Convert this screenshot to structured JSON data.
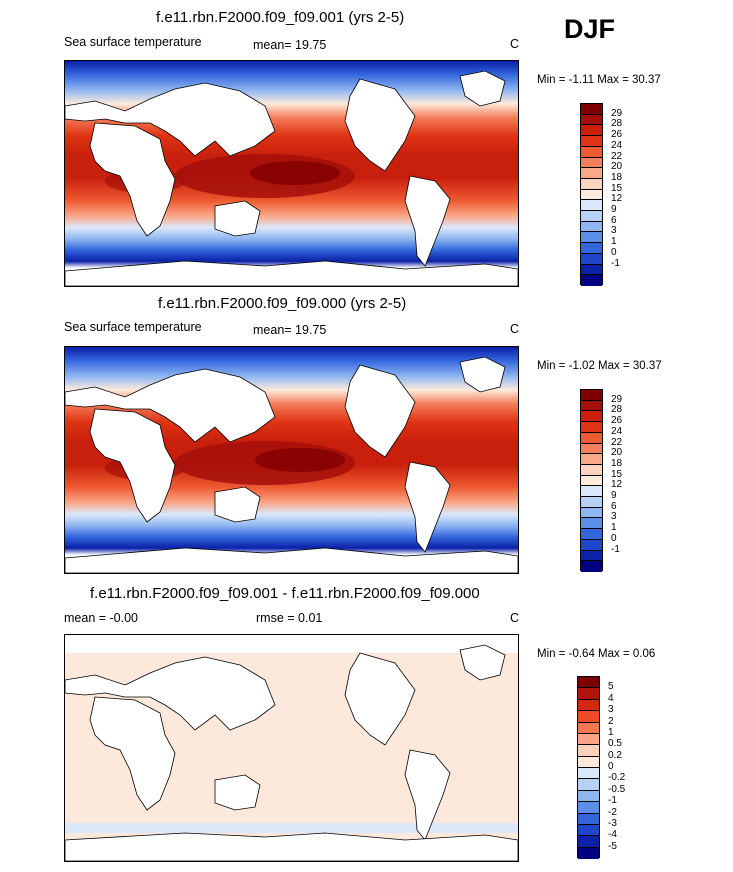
{
  "season": "DJF",
  "panels": [
    {
      "title": "f.e11.rbn.F2000.f09_f09.001 (yrs 2-5)",
      "left_label": "Sea surface temperature",
      "center_label": "mean=  19.75",
      "right_label": "C",
      "minmax": "Min =  -1.11 Max =  30.37",
      "colorbar": {
        "labels": [
          "29",
          "28",
          "26",
          "24",
          "22",
          "20",
          "18",
          "15",
          "12",
          "9",
          "6",
          "3",
          "1",
          "0",
          "-1"
        ],
        "colors": [
          "#7f0000",
          "#a50f0b",
          "#c8200c",
          "#e03515",
          "#ee5a31",
          "#f47f5e",
          "#f9a88a",
          "#fdd4bf",
          "#fdebdd",
          "#dbe8fa",
          "#b6d0f6",
          "#8fb6f0",
          "#5b8fe8",
          "#3366dd",
          "#1f45c8",
          "#0b21a8",
          "#000080"
        ],
        "comment": "top to bottom"
      }
    },
    {
      "title": "f.e11.rbn.F2000.f09_f09.000 (yrs 2-5)",
      "left_label": "Sea surface temperature",
      "center_label": "mean=  19.75",
      "right_label": "C",
      "minmax": "Min =  -1.02 Max =  30.37",
      "colorbar": {
        "labels": [
          "29",
          "28",
          "26",
          "24",
          "22",
          "20",
          "18",
          "15",
          "12",
          "9",
          "6",
          "3",
          "1",
          "0",
          "-1"
        ],
        "colors": [
          "#7f0000",
          "#a50f0b",
          "#c8200c",
          "#e03515",
          "#ee5a31",
          "#f47f5e",
          "#f9a88a",
          "#fdd4bf",
          "#fdebdd",
          "#dbe8fa",
          "#b6d0f6",
          "#8fb6f0",
          "#5b8fe8",
          "#3366dd",
          "#1f45c8",
          "#0b21a8",
          "#000080"
        ]
      }
    },
    {
      "title": "f.e11.rbn.F2000.f09_f09.001 - f.e11.rbn.F2000.f09_f09.000",
      "left_label": "mean =  -0.00",
      "center_label": "rmse =   0.01",
      "right_label": "C",
      "minmax": "Min =  -0.64 Max =   0.06",
      "colorbar": {
        "labels": [
          "5",
          "4",
          "3",
          "2",
          "1",
          "0.5",
          "0.2",
          "0",
          "-0.2",
          "-0.5",
          "-1",
          "-2",
          "-3",
          "-4",
          "-5"
        ],
        "colors": [
          "#7f0000",
          "#b0140c",
          "#d42a12",
          "#ec4b26",
          "#f5774f",
          "#f9a484",
          "#fcd1bc",
          "#fde9dc",
          "#dbe8fa",
          "#b6d0f6",
          "#8fb6f0",
          "#5b8fe8",
          "#3366dd",
          "#1f45c8",
          "#0b21a8",
          "#000080"
        ]
      }
    }
  ]
}
